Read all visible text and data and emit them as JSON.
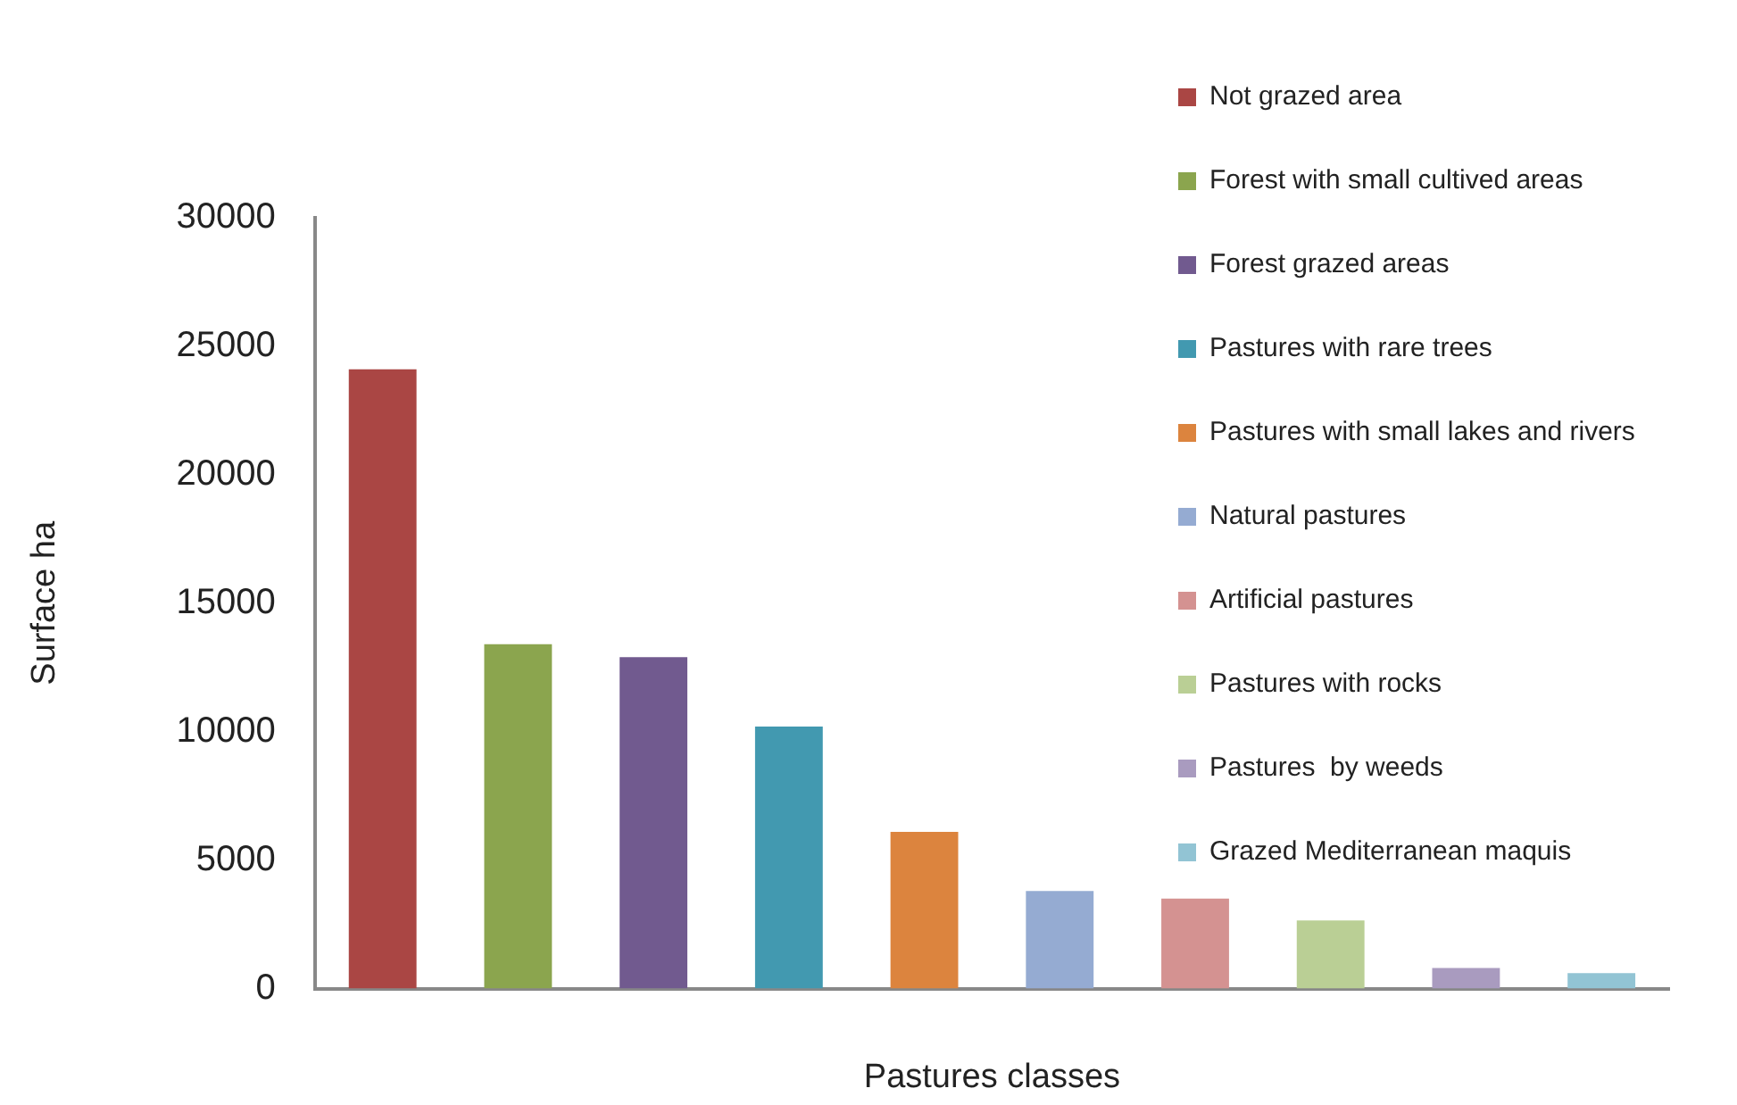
{
  "chart_data": {
    "type": "bar",
    "xlabel": "Pastures classes",
    "ylabel": "Surface ha",
    "categories": [
      null,
      null,
      null,
      null,
      null,
      null,
      null,
      null,
      null,
      null
    ],
    "series": [
      {
        "name": "Not grazed area",
        "color": "#aa4644",
        "values": [
          24100,
          null,
          null,
          null,
          null,
          null,
          null,
          null,
          null,
          null
        ]
      },
      {
        "name": "Forest with small cultived areas",
        "color": "#8ba54e",
        "values": [
          null,
          13400,
          null,
          null,
          null,
          null,
          null,
          null,
          null,
          null
        ]
      },
      {
        "name": "Forest grazed areas",
        "color": "#715a8f",
        "values": [
          null,
          null,
          12900,
          null,
          null,
          null,
          null,
          null,
          null,
          null
        ]
      },
      {
        "name": "Pastures with rare trees",
        "color": "#4299b0",
        "values": [
          null,
          null,
          null,
          10200,
          null,
          null,
          null,
          null,
          null,
          null
        ]
      },
      {
        "name": "Pastures with small lakes and rivers",
        "color": "#dc843e",
        "values": [
          null,
          null,
          null,
          null,
          6100,
          null,
          null,
          null,
          null,
          null
        ]
      },
      {
        "name": "Natural pastures",
        "color": "#95abd2",
        "values": [
          null,
          null,
          null,
          null,
          null,
          3800,
          null,
          null,
          null,
          null
        ]
      },
      {
        "name": "Artificial pastures",
        "color": "#d49291",
        "values": [
          null,
          null,
          null,
          null,
          null,
          null,
          3500,
          null,
          null,
          null
        ]
      },
      {
        "name": "Pastures with rocks",
        "color": "#bacf95",
        "values": [
          null,
          null,
          null,
          null,
          null,
          null,
          null,
          2650,
          null,
          null
        ]
      },
      {
        "name": "Pastures  by weeds",
        "color": "#a99bbf",
        "values": [
          null,
          null,
          null,
          null,
          null,
          null,
          null,
          null,
          800,
          null
        ]
      },
      {
        "name": "Grazed Mediterranean maquis",
        "color": "#92c4d4",
        "values": [
          null,
          null,
          null,
          null,
          null,
          null,
          null,
          null,
          null,
          600
        ]
      }
    ],
    "ylim": [
      0,
      30000
    ],
    "yticks": [
      0,
      5000,
      10000,
      15000,
      20000,
      25000,
      30000
    ],
    "grid": false,
    "legend": "top right"
  }
}
